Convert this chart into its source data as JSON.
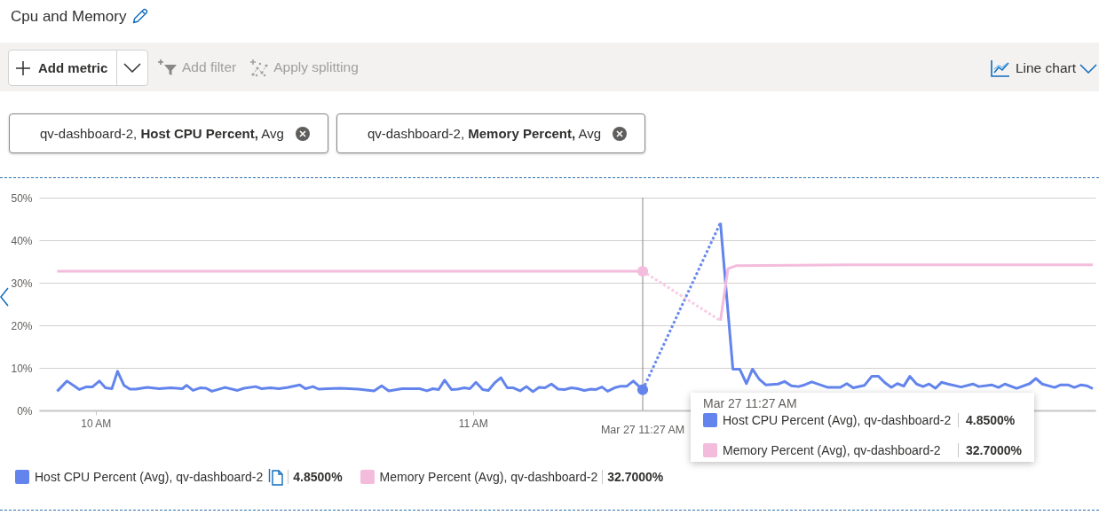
{
  "chart_data": {
    "type": "line",
    "title": "Cpu and Memory",
    "annotations": [
      "Add metric",
      "Add filter",
      "Apply splitting",
      "Line chart",
      "qv-dashboard-2, Host CPU Percent, Avg",
      "qv-dashboard-2, Memory Percent, Avg",
      "4.8500%",
      "32.7000%"
    ],
    "xlim": [
      9.85,
      12.65
    ],
    "xticks": [
      {
        "value": 10,
        "label": "10 AM"
      },
      {
        "value": 11,
        "label": "11 AM"
      }
    ],
    "ylim": [
      0,
      50
    ],
    "yticks": [
      {
        "value": 0,
        "label": "0%"
      },
      {
        "value": 10,
        "label": "10%"
      },
      {
        "value": 20,
        "label": "20%"
      },
      {
        "value": 30,
        "label": "30%"
      },
      {
        "value": 40,
        "label": "40%"
      },
      {
        "value": 50,
        "label": "50%"
      }
    ],
    "grid": "y",
    "legend": "bottom",
    "ref_lines": [
      {
        "axis": "x",
        "value": 11.45,
        "label": "Mar 27 11:27 AM",
        "color": "#8a8886"
      }
    ],
    "series": [
      {
        "name": "Host CPU Percent (Avg), qv-dashboard-2",
        "color": "#6284ec",
        "x": [
          9.898,
          9.924,
          9.957,
          9.974,
          9.991,
          10.01,
          10.026,
          10.043,
          10.058,
          10.075,
          10.091,
          10.106,
          10.137,
          10.168,
          10.199,
          10.23,
          10.241,
          10.258,
          10.277,
          10.293,
          10.308,
          10.343,
          10.376,
          10.393,
          10.424,
          10.44,
          10.463,
          10.486,
          10.51,
          10.541,
          10.556,
          10.576,
          10.591,
          10.614,
          10.649,
          10.696,
          10.738,
          10.758,
          10.777,
          10.812,
          10.859,
          10.878,
          10.894,
          10.909,
          10.925,
          10.943,
          10.96,
          10.977,
          10.992,
          11.008,
          11.026,
          11.041,
          11.059,
          11.074,
          11.091,
          11.107,
          11.125,
          11.142,
          11.159,
          11.175,
          11.191,
          11.208,
          11.226,
          11.243,
          11.261,
          11.278,
          11.295,
          11.313,
          11.326,
          11.342,
          11.357,
          11.375,
          11.392,
          11.408,
          11.425,
          11.45,
          11.55,
          11.656,
          11.689,
          11.707,
          11.725,
          11.741,
          11.759,
          11.776,
          11.809,
          11.826,
          11.844,
          11.863,
          11.879,
          11.898,
          11.941,
          11.974,
          11.991,
          12.008,
          12.038,
          12.057,
          12.075,
          12.092,
          12.109,
          12.125,
          12.142,
          12.158,
          12.176,
          12.193,
          12.209,
          12.226,
          12.242,
          12.259,
          12.294,
          12.325,
          12.341,
          12.375,
          12.393,
          12.41,
          12.441,
          12.476,
          12.492,
          12.509,
          12.542,
          12.558,
          12.577,
          12.594,
          12.612,
          12.627,
          12.643
        ],
        "values": [
          4.5,
          6.9,
          4.9,
          5.5,
          5.5,
          6.9,
          5.3,
          5.1,
          9.2,
          5.9,
          5.0,
          5.0,
          5.4,
          5.1,
          5.3,
          5.1,
          5.9,
          4.7,
          5.3,
          5.2,
          4.5,
          5.4,
          4.7,
          5.2,
          5.6,
          5.1,
          5.3,
          5.1,
          5.4,
          6.0,
          5.1,
          5.6,
          5.0,
          5.1,
          5.2,
          5.0,
          4.6,
          5.8,
          4.6,
          5.1,
          5.1,
          4.6,
          5.1,
          4.9,
          7.1,
          4.9,
          5.0,
          5.3,
          5.1,
          6.6,
          4.9,
          4.7,
          6.6,
          7.7,
          5.3,
          5.3,
          4.6,
          5.6,
          4.4,
          5.4,
          5.3,
          6.2,
          5.0,
          4.9,
          5.3,
          5.1,
          4.7,
          5.0,
          4.9,
          5.5,
          4.5,
          5.3,
          5.7,
          5.7,
          6.9,
          4.85,
          null,
          44.1,
          9.7,
          9.7,
          6.3,
          9.7,
          7.3,
          6.0,
          6.2,
          6.8,
          5.8,
          5.6,
          6.0,
          6.7,
          5.4,
          5.4,
          6.3,
          5.3,
          5.9,
          8.0,
          8.0,
          6.5,
          5.4,
          6.3,
          5.7,
          8.0,
          6.2,
          5.6,
          6.2,
          5.2,
          6.6,
          6.2,
          5.5,
          6.2,
          5.6,
          6.0,
          5.4,
          6.2,
          5.2,
          6.3,
          7.5,
          6.2,
          5.4,
          6.0,
          6.0,
          5.4,
          6.0,
          5.8,
          5.1
        ]
      },
      {
        "name": "Memory Percent (Avg), qv-dashboard-2",
        "color": "#f4bcdc",
        "x": [
          9.898,
          10.3,
          10.7,
          11.1,
          11.45,
          11.55,
          11.656,
          11.676,
          11.697,
          12.0,
          12.3,
          12.643
        ],
        "values": [
          32.7,
          32.7,
          32.7,
          32.7,
          32.7,
          null,
          21.1,
          33.3,
          34.0,
          34.2,
          34.2,
          34.2
        ]
      },
      {
        "color": "#6889ee",
        "line_style": "dotted",
        "x": [
          11.45,
          11.656
        ],
        "values": [
          4.85,
          44.1
        ]
      },
      {
        "color": "#f7cbe3",
        "line_style": "dotted",
        "x": [
          11.45,
          11.656
        ],
        "values": [
          32.7,
          21.1
        ]
      }
    ]
  }
}
